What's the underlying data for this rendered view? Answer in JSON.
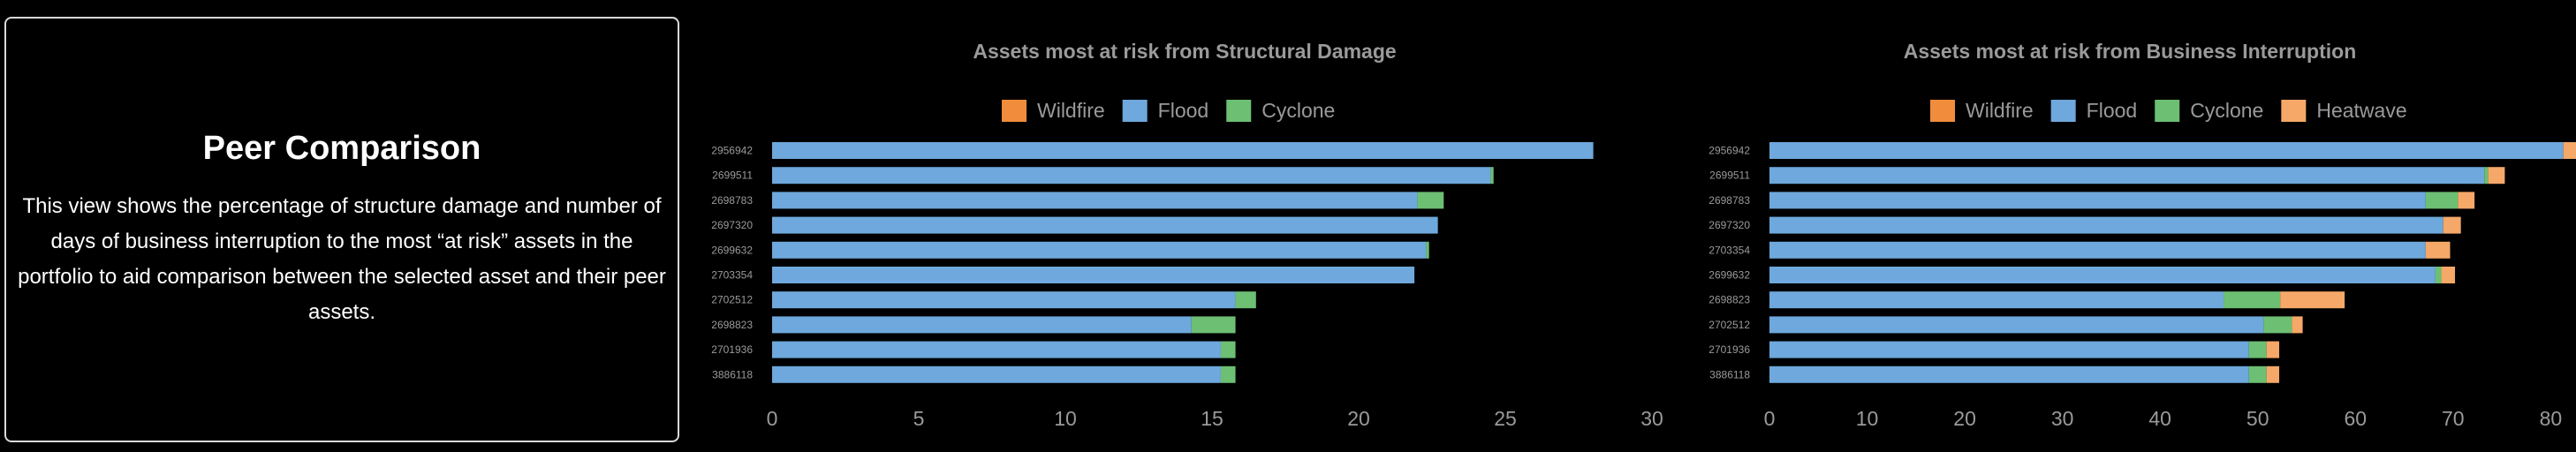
{
  "info": {
    "title": "Peer Comparison",
    "text": "This view shows the percentage of structure damage and number of days of business interruption to the most “at risk” assets in the portfolio to aid comparison between the selected asset and their peer assets."
  },
  "colors": {
    "Wildfire": "#f08c3c",
    "Flood": "#6ea8dc",
    "Cyclone": "#6cbf73",
    "Heatwave": "#f5a868"
  },
  "chart_data": [
    {
      "type": "bar",
      "orientation": "horizontal",
      "stacked": true,
      "title": "Assets most at risk from Structural Damage",
      "legend": [
        "Wildfire",
        "Flood",
        "Cyclone"
      ],
      "legend_placement": "top",
      "categories": [
        "2956942",
        "2699511",
        "2698783",
        "2697320",
        "2699632",
        "2703354",
        "2702512",
        "2698823",
        "2701936",
        "3886118"
      ],
      "series": [
        {
          "name": "Wildfire",
          "values": [
            0,
            0,
            0,
            0,
            0,
            0,
            0,
            0,
            0,
            0
          ]
        },
        {
          "name": "Flood",
          "values": [
            28.0,
            24.5,
            22.0,
            22.7,
            22.3,
            21.9,
            15.8,
            14.3,
            15.3,
            15.3
          ]
        },
        {
          "name": "Cyclone",
          "values": [
            0,
            0.1,
            0.9,
            0,
            0.1,
            0,
            0.7,
            1.5,
            0.5,
            0.5
          ]
        }
      ],
      "xlim": [
        0,
        30
      ],
      "xticks": [
        0,
        5,
        10,
        15,
        20,
        25,
        30
      ],
      "grid": false
    },
    {
      "type": "bar",
      "orientation": "horizontal",
      "stacked": true,
      "title": "Assets most at risk from Business Interruption",
      "legend": [
        "Wildfire",
        "Flood",
        "Cyclone",
        "Heatwave"
      ],
      "legend_placement": "top",
      "categories": [
        "2956942",
        "2699511",
        "2698783",
        "2697320",
        "2703354",
        "2699632",
        "2698823",
        "2702512",
        "2701936",
        "3886118"
      ],
      "series": [
        {
          "name": "Wildfire",
          "values": [
            0,
            0,
            0,
            0,
            0,
            0,
            0,
            0,
            0,
            0
          ]
        },
        {
          "name": "Flood",
          "values": [
            81.3,
            73.2,
            67.2,
            69.0,
            67.2,
            68.2,
            46.5,
            50.6,
            49.1,
            49.1
          ]
        },
        {
          "name": "Cyclone",
          "values": [
            0,
            0.4,
            3.3,
            0,
            0,
            0.6,
            5.8,
            2.9,
            1.8,
            1.8
          ]
        },
        {
          "name": "Heatwave",
          "values": [
            1.7,
            1.7,
            1.7,
            1.8,
            2.5,
            1.4,
            6.6,
            1.1,
            1.3,
            1.3
          ]
        }
      ],
      "xlim": [
        0,
        82.5
      ],
      "xticks": [
        0,
        10,
        20,
        30,
        40,
        50,
        60,
        70,
        80
      ],
      "grid": false
    }
  ]
}
